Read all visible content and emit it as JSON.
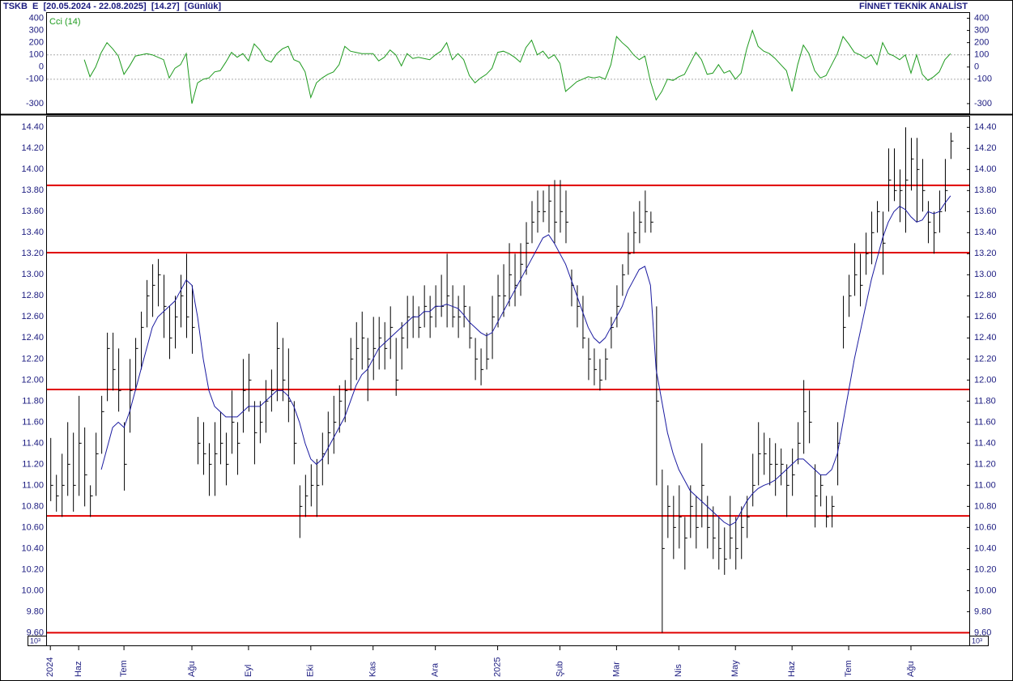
{
  "header": {
    "title": "TSKB  E  [20.05.2024 - 22.08.2025]  [14.27]  [Günlük]",
    "brand": "FİNNET TEKNİK ANALİST"
  },
  "chart_data": [
    {
      "type": "line",
      "series": [
        {
          "name": "Cci (14)",
          "color": "#1e9a1e",
          "values": [
            null,
            null,
            null,
            null,
            null,
            null,
            60,
            -80,
            0,
            120,
            200,
            150,
            90,
            -60,
            10,
            90,
            100,
            110,
            100,
            80,
            60,
            -90,
            -10,
            20,
            110,
            -300,
            -130,
            -100,
            -90,
            -40,
            -30,
            40,
            120,
            80,
            110,
            50,
            190,
            140,
            60,
            40,
            110,
            150,
            170,
            60,
            40,
            -40,
            -250,
            -130,
            -90,
            -60,
            -40,
            20,
            170,
            130,
            120,
            110,
            110,
            110,
            50,
            80,
            140,
            100,
            10,
            110,
            70,
            80,
            70,
            60,
            100,
            130,
            200,
            60,
            110,
            60,
            -70,
            -130,
            -90,
            -60,
            -10,
            120,
            130,
            110,
            80,
            40,
            160,
            220,
            100,
            130,
            70,
            100,
            30,
            -200,
            -160,
            -120,
            -100,
            -80,
            -90,
            -80,
            -100,
            20,
            250,
            200,
            160,
            100,
            60,
            90,
            -120,
            -270,
            -200,
            -100,
            -110,
            -80,
            -60,
            30,
            120,
            60,
            -60,
            -50,
            20,
            -50,
            -30,
            -100,
            -50,
            150,
            300,
            170,
            130,
            110,
            70,
            20,
            -30,
            -200,
            20,
            180,
            110,
            -30,
            -90,
            -70,
            20,
            110,
            250,
            190,
            120,
            100,
            70,
            100,
            20,
            200,
            110,
            90,
            60,
            100,
            -50,
            100,
            -60,
            -110,
            -80,
            -40,
            60,
            110
          ]
        }
      ],
      "xlim": [
        -0.6,
        162.3
      ],
      "ylim": [
        -380,
        450
      ],
      "yticks": [
        400,
        300,
        200,
        100,
        0,
        -100,
        -300
      ],
      "ref_lines": [
        100,
        -100
      ]
    },
    {
      "type": "ohlc",
      "high": [
        11.45,
        11.1,
        11.3,
        11.6,
        11.5,
        11.85,
        11.55,
        11.0,
        11.5,
        11.85,
        12.45,
        12.45,
        12.3,
        11.6,
        12.2,
        12.4,
        12.65,
        12.95,
        13.1,
        13.15,
        13.0,
        12.7,
        12.8,
        13.0,
        13.2,
        12.9,
        11.65,
        11.6,
        11.4,
        11.6,
        11.7,
        11.5,
        11.9,
        11.6,
        12.2,
        12.25,
        11.8,
        11.8,
        12.0,
        12.1,
        12.55,
        12.4,
        12.3,
        11.8,
        11.0,
        11.1,
        11.2,
        11.25,
        11.5,
        11.7,
        11.85,
        11.95,
        12.0,
        12.4,
        12.55,
        12.65,
        12.4,
        12.6,
        12.6,
        12.55,
        12.7,
        12.4,
        12.55,
        12.8,
        12.8,
        12.7,
        12.9,
        12.8,
        12.9,
        13.0,
        13.2,
        12.9,
        12.8,
        12.9,
        12.7,
        12.4,
        12.3,
        12.45,
        12.8,
        13.0,
        13.1,
        13.3,
        13.2,
        13.3,
        13.5,
        13.7,
        13.8,
        13.8,
        13.85,
        13.9,
        13.9,
        13.8,
        13.05,
        12.9,
        12.8,
        12.4,
        12.3,
        12.2,
        12.3,
        12.6,
        12.9,
        13.1,
        13.4,
        13.6,
        13.7,
        13.8,
        13.6,
        12.7,
        11.15,
        11.0,
        10.9,
        11.0,
        10.7,
        11.0,
        10.9,
        11.4,
        10.9,
        10.8,
        10.7,
        10.6,
        10.9,
        10.7,
        10.8,
        10.9,
        11.3,
        11.6,
        11.5,
        11.45,
        11.4,
        11.35,
        11.2,
        11.35,
        11.6,
        12.0,
        11.9,
        11.2,
        11.1,
        10.9,
        10.9,
        11.6,
        12.8,
        13.0,
        13.3,
        13.2,
        13.4,
        13.6,
        13.7,
        13.6,
        14.2,
        14.2,
        14.0,
        14.4,
        14.3,
        14.3,
        14.1,
        13.7,
        13.6,
        13.8,
        14.1,
        14.35
      ],
      "low": [
        10.85,
        10.75,
        10.7,
        10.9,
        10.75,
        10.9,
        10.8,
        10.7,
        10.9,
        11.3,
        11.8,
        11.9,
        11.7,
        10.95,
        11.5,
        11.9,
        12.1,
        12.5,
        12.6,
        12.7,
        12.4,
        12.2,
        12.3,
        12.5,
        12.4,
        12.25,
        11.2,
        11.1,
        10.9,
        10.9,
        11.2,
        11.0,
        11.3,
        11.1,
        11.5,
        11.7,
        11.2,
        11.4,
        11.5,
        11.7,
        11.8,
        11.8,
        11.6,
        11.2,
        10.5,
        10.7,
        10.8,
        10.7,
        11.0,
        11.2,
        11.3,
        11.5,
        11.6,
        11.9,
        12.0,
        12.1,
        11.8,
        12.0,
        12.1,
        12.1,
        12.2,
        11.85,
        12.1,
        12.3,
        12.4,
        12.4,
        12.5,
        12.4,
        12.5,
        12.6,
        12.5,
        12.5,
        12.4,
        12.5,
        12.3,
        12.0,
        11.95,
        12.1,
        12.2,
        12.5,
        12.6,
        12.7,
        12.7,
        12.8,
        13.0,
        13.3,
        13.4,
        13.5,
        13.4,
        13.3,
        13.4,
        13.3,
        12.7,
        12.5,
        12.3,
        12.0,
        11.95,
        11.9,
        12.0,
        12.3,
        12.5,
        12.8,
        13.0,
        13.2,
        13.3,
        13.4,
        13.4,
        11.0,
        9.6,
        10.5,
        10.3,
        10.4,
        10.2,
        10.5,
        10.4,
        10.6,
        10.4,
        10.3,
        10.2,
        10.15,
        10.3,
        10.2,
        10.3,
        10.5,
        10.8,
        11.0,
        11.1,
        11.0,
        10.9,
        11.0,
        10.7,
        10.9,
        11.2,
        11.3,
        11.4,
        10.6,
        10.8,
        10.6,
        10.6,
        11.0,
        12.3,
        12.6,
        12.8,
        12.7,
        13.0,
        13.1,
        13.4,
        13.0,
        13.6,
        13.7,
        13.5,
        13.4,
        13.8,
        13.5,
        13.6,
        13.3,
        13.2,
        13.4,
        13.6,
        14.1
      ],
      "close": [
        11.0,
        10.9,
        11.0,
        11.2,
        11.0,
        11.4,
        11.1,
        10.9,
        11.3,
        11.7,
        12.3,
        12.1,
        11.9,
        11.2,
        11.9,
        12.3,
        12.5,
        12.8,
        12.9,
        13.0,
        12.7,
        12.4,
        12.6,
        12.8,
        12.6,
        12.5,
        11.4,
        11.3,
        11.2,
        11.3,
        11.4,
        11.2,
        11.6,
        11.4,
        11.9,
        12.0,
        11.5,
        11.6,
        11.8,
        11.9,
        12.3,
        12.0,
        11.8,
        11.4,
        10.8,
        10.9,
        11.0,
        11.0,
        11.3,
        11.5,
        11.6,
        11.8,
        11.9,
        12.2,
        12.3,
        12.4,
        12.2,
        12.3,
        12.4,
        12.3,
        12.5,
        12.0,
        12.4,
        12.6,
        12.6,
        12.5,
        12.7,
        12.6,
        12.7,
        12.7,
        12.8,
        12.6,
        12.6,
        12.7,
        12.4,
        12.2,
        12.1,
        12.2,
        12.6,
        12.8,
        12.8,
        13.0,
        12.9,
        13.1,
        13.3,
        13.5,
        13.6,
        13.6,
        13.7,
        13.5,
        13.6,
        13.5,
        12.9,
        12.7,
        12.4,
        12.2,
        12.1,
        12.0,
        12.2,
        12.5,
        12.7,
        13.0,
        13.2,
        13.4,
        13.5,
        13.6,
        13.5,
        11.8,
        10.4,
        10.8,
        10.6,
        10.7,
        10.5,
        10.8,
        10.6,
        11.0,
        10.6,
        10.5,
        10.4,
        10.3,
        10.5,
        10.4,
        10.6,
        10.7,
        11.0,
        11.3,
        11.3,
        11.2,
        11.2,
        11.2,
        11.0,
        11.1,
        11.4,
        11.7,
        11.6,
        10.9,
        11.0,
        10.7,
        10.8,
        11.4,
        12.5,
        12.8,
        13.0,
        12.9,
        13.2,
        13.4,
        13.6,
        13.3,
        13.9,
        13.8,
        13.8,
        13.9,
        14.1,
        14.0,
        13.8,
        13.5,
        13.4,
        13.6,
        13.8,
        14.27
      ],
      "bar_color": "#000000",
      "ma": {
        "color": "#1a1aa0",
        "values": [
          null,
          null,
          null,
          null,
          null,
          null,
          null,
          null,
          null,
          11.15,
          11.35,
          11.55,
          11.6,
          11.55,
          11.7,
          11.9,
          12.1,
          12.3,
          12.5,
          12.6,
          12.65,
          12.7,
          12.75,
          12.85,
          12.95,
          12.9,
          12.6,
          12.2,
          11.9,
          11.75,
          11.7,
          11.65,
          11.65,
          11.65,
          11.7,
          11.75,
          11.75,
          11.75,
          11.8,
          11.85,
          11.9,
          11.9,
          11.85,
          11.75,
          11.6,
          11.4,
          11.25,
          11.2,
          11.25,
          11.35,
          11.45,
          11.55,
          11.65,
          11.8,
          11.95,
          12.05,
          12.1,
          12.2,
          12.3,
          12.35,
          12.4,
          12.45,
          12.5,
          12.55,
          12.6,
          12.6,
          12.65,
          12.65,
          12.7,
          12.7,
          12.72,
          12.7,
          12.68,
          12.62,
          12.55,
          12.5,
          12.45,
          12.42,
          12.45,
          12.55,
          12.65,
          12.75,
          12.85,
          12.95,
          13.05,
          13.15,
          13.25,
          13.35,
          13.38,
          13.3,
          13.2,
          13.1,
          12.95,
          12.8,
          12.65,
          12.5,
          12.4,
          12.35,
          12.4,
          12.5,
          12.6,
          12.7,
          12.85,
          12.95,
          13.05,
          13.08,
          12.9,
          12.1,
          11.8,
          11.5,
          11.3,
          11.15,
          11.05,
          10.95,
          10.9,
          10.85,
          10.8,
          10.75,
          10.7,
          10.65,
          10.62,
          10.65,
          10.75,
          10.85,
          10.92,
          10.97,
          11.0,
          11.02,
          11.05,
          11.1,
          11.15,
          11.2,
          11.25,
          11.25,
          11.2,
          11.15,
          11.1,
          11.1,
          11.15,
          11.3,
          11.6,
          11.9,
          12.2,
          12.45,
          12.7,
          12.95,
          13.15,
          13.35,
          13.5,
          13.6,
          13.65,
          13.62,
          13.55,
          13.5,
          13.52,
          13.6,
          13.58,
          13.6,
          13.68,
          13.75
        ]
      },
      "levels": {
        "color": "#e00000",
        "values": [
          13.85,
          13.21,
          11.91,
          10.71,
          9.6
        ]
      },
      "xlim": [
        -0.6,
        162.3
      ],
      "xticks": [
        {
          "value": 0,
          "label": "2024"
        },
        {
          "value": 5,
          "label": "Haz"
        },
        {
          "value": 13,
          "label": "Tem"
        },
        {
          "value": 25,
          "label": "Ağu"
        },
        {
          "value": 35,
          "label": "Eyl"
        },
        {
          "value": 46,
          "label": "Eki"
        },
        {
          "value": 57,
          "label": "Kas"
        },
        {
          "value": 68,
          "label": "Ara"
        },
        {
          "value": 79,
          "label": "2025"
        },
        {
          "value": 90,
          "label": "Şub"
        },
        {
          "value": 100,
          "label": "Mar"
        },
        {
          "value": 111,
          "label": "Nis"
        },
        {
          "value": 121,
          "label": "May"
        },
        {
          "value": 131,
          "label": "Haz"
        },
        {
          "value": 141,
          "label": "Tem"
        },
        {
          "value": 152,
          "label": "Ağu"
        }
      ],
      "ylim": [
        9.48,
        14.51
      ],
      "yticks": [
        {
          "value": 9.6,
          "label": "9.60"
        },
        {
          "value": 9.8,
          "label": "9.80"
        },
        {
          "value": 10,
          "label": "10.00"
        },
        {
          "value": 10.2,
          "label": "10.20"
        },
        {
          "value": 10.4,
          "label": "10.40"
        },
        {
          "value": 10.6,
          "label": "10.60"
        },
        {
          "value": 10.8,
          "label": "10.80"
        },
        {
          "value": 11,
          "label": "11.00"
        },
        {
          "value": 11.2,
          "label": "11.20"
        },
        {
          "value": 11.4,
          "label": "11.40"
        },
        {
          "value": 11.6,
          "label": "11.60"
        },
        {
          "value": 11.8,
          "label": "11.80"
        },
        {
          "value": 12,
          "label": "12.00"
        },
        {
          "value": 12.2,
          "label": "12.20"
        },
        {
          "value": 12.4,
          "label": "12.40"
        },
        {
          "value": 12.6,
          "label": "12.60"
        },
        {
          "value": 12.8,
          "label": "12.80"
        },
        {
          "value": 13,
          "label": "13.00"
        },
        {
          "value": 13.2,
          "label": "13.20"
        },
        {
          "value": 13.4,
          "label": "13.40"
        },
        {
          "value": 13.6,
          "label": "13.60"
        },
        {
          "value": 13.8,
          "label": "13.80"
        },
        {
          "value": 14,
          "label": "14.00"
        },
        {
          "value": 14.2,
          "label": "14.20"
        },
        {
          "value": 14.4,
          "label": "14.40"
        }
      ],
      "unit_label": "10³"
    }
  ]
}
